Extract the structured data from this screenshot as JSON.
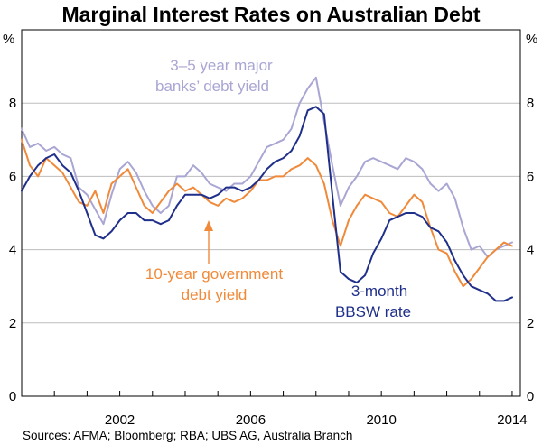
{
  "chart_data": {
    "type": "line",
    "title": "Marginal Interest Rates on Australian Debt",
    "source": "Sources: AFMA; Bloomberg; RBA; UBS AG, Australia Branch",
    "ylabel_left": "%",
    "ylabel_right": "%",
    "xlim": [
      1999.0,
      2014.25
    ],
    "ylim": [
      0,
      10
    ],
    "x_ticks": [
      2002,
      2006,
      2010,
      2014
    ],
    "y_ticks": [
      0,
      2,
      4,
      6,
      8
    ],
    "grid": "horizontal",
    "series": [
      {
        "key": "bank_debt",
        "name_lines": [
          "3–5 year major",
          "banks’ debt yield"
        ],
        "color": "#a9a6d3",
        "points": [
          [
            1999.0,
            7.3
          ],
          [
            1999.25,
            6.8
          ],
          [
            1999.5,
            6.9
          ],
          [
            1999.75,
            6.7
          ],
          [
            2000.0,
            6.8
          ],
          [
            2000.25,
            6.6
          ],
          [
            2000.5,
            6.5
          ],
          [
            2000.75,
            5.7
          ],
          [
            2001.0,
            5.5
          ],
          [
            2001.25,
            5.1
          ],
          [
            2001.5,
            4.7
          ],
          [
            2001.75,
            5.5
          ],
          [
            2002.0,
            6.2
          ],
          [
            2002.25,
            6.4
          ],
          [
            2002.5,
            6.1
          ],
          [
            2002.75,
            5.6
          ],
          [
            2003.0,
            5.2
          ],
          [
            2003.25,
            5.0
          ],
          [
            2003.5,
            5.2
          ],
          [
            2003.75,
            6.0
          ],
          [
            2004.0,
            6.0
          ],
          [
            2004.25,
            6.3
          ],
          [
            2004.5,
            6.1
          ],
          [
            2004.75,
            5.8
          ],
          [
            2005.0,
            5.7
          ],
          [
            2005.25,
            5.6
          ],
          [
            2005.5,
            5.8
          ],
          [
            2005.75,
            5.8
          ],
          [
            2006.0,
            6.0
          ],
          [
            2006.25,
            6.4
          ],
          [
            2006.5,
            6.8
          ],
          [
            2006.75,
            6.9
          ],
          [
            2007.0,
            7.0
          ],
          [
            2007.25,
            7.3
          ],
          [
            2007.5,
            8.0
          ],
          [
            2007.75,
            8.4
          ],
          [
            2008.0,
            8.7
          ],
          [
            2008.25,
            7.5
          ],
          [
            2008.5,
            6.3
          ],
          [
            2008.75,
            5.2
          ],
          [
            2009.0,
            5.7
          ],
          [
            2009.25,
            6.0
          ],
          [
            2009.5,
            6.4
          ],
          [
            2009.75,
            6.5
          ],
          [
            2010.0,
            6.4
          ],
          [
            2010.25,
            6.3
          ],
          [
            2010.5,
            6.2
          ],
          [
            2010.75,
            6.5
          ],
          [
            2011.0,
            6.4
          ],
          [
            2011.25,
            6.2
          ],
          [
            2011.5,
            5.8
          ],
          [
            2011.75,
            5.6
          ],
          [
            2012.0,
            5.8
          ],
          [
            2012.25,
            5.4
          ],
          [
            2012.5,
            4.6
          ],
          [
            2012.75,
            4.0
          ],
          [
            2013.0,
            4.1
          ],
          [
            2013.25,
            3.8
          ],
          [
            2013.5,
            4.0
          ],
          [
            2013.75,
            4.1
          ],
          [
            2014.0,
            4.2
          ]
        ]
      },
      {
        "key": "govt_10y",
        "name_lines": [
          "10-year government",
          "debt yield"
        ],
        "color": "#f08a3a",
        "points": [
          [
            1999.0,
            7.0
          ],
          [
            1999.25,
            6.3
          ],
          [
            1999.5,
            6.0
          ],
          [
            1999.75,
            6.5
          ],
          [
            2000.0,
            6.3
          ],
          [
            2000.25,
            6.1
          ],
          [
            2000.5,
            5.7
          ],
          [
            2000.75,
            5.3
          ],
          [
            2001.0,
            5.2
          ],
          [
            2001.25,
            5.6
          ],
          [
            2001.5,
            5.0
          ],
          [
            2001.75,
            5.8
          ],
          [
            2002.0,
            6.0
          ],
          [
            2002.25,
            6.2
          ],
          [
            2002.5,
            5.7
          ],
          [
            2002.75,
            5.2
          ],
          [
            2003.0,
            5.0
          ],
          [
            2003.25,
            5.3
          ],
          [
            2003.5,
            5.6
          ],
          [
            2003.75,
            5.8
          ],
          [
            2004.0,
            5.6
          ],
          [
            2004.25,
            5.7
          ],
          [
            2004.5,
            5.5
          ],
          [
            2004.75,
            5.3
          ],
          [
            2005.0,
            5.2
          ],
          [
            2005.25,
            5.4
          ],
          [
            2005.5,
            5.3
          ],
          [
            2005.75,
            5.4
          ],
          [
            2006.0,
            5.6
          ],
          [
            2006.25,
            5.9
          ],
          [
            2006.5,
            5.9
          ],
          [
            2006.75,
            6.0
          ],
          [
            2007.0,
            6.0
          ],
          [
            2007.25,
            6.2
          ],
          [
            2007.5,
            6.3
          ],
          [
            2007.75,
            6.5
          ],
          [
            2008.0,
            6.3
          ],
          [
            2008.25,
            5.8
          ],
          [
            2008.5,
            4.8
          ],
          [
            2008.75,
            4.1
          ],
          [
            2009.0,
            4.8
          ],
          [
            2009.25,
            5.2
          ],
          [
            2009.5,
            5.5
          ],
          [
            2009.75,
            5.4
          ],
          [
            2010.0,
            5.3
          ],
          [
            2010.25,
            5.0
          ],
          [
            2010.5,
            4.9
          ],
          [
            2010.75,
            5.2
          ],
          [
            2011.0,
            5.5
          ],
          [
            2011.25,
            5.3
          ],
          [
            2011.5,
            4.6
          ],
          [
            2011.75,
            4.0
          ],
          [
            2012.0,
            3.9
          ],
          [
            2012.25,
            3.4
          ],
          [
            2012.5,
            3.0
          ],
          [
            2012.75,
            3.2
          ],
          [
            2013.0,
            3.5
          ],
          [
            2013.25,
            3.8
          ],
          [
            2013.5,
            4.0
          ],
          [
            2013.75,
            4.2
          ],
          [
            2014.0,
            4.1
          ]
        ]
      },
      {
        "key": "bbsw",
        "name_lines": [
          "3-month",
          "BBSW rate"
        ],
        "color": "#1f2f8a",
        "points": [
          [
            1999.0,
            5.6
          ],
          [
            1999.25,
            6.0
          ],
          [
            1999.5,
            6.3
          ],
          [
            1999.75,
            6.5
          ],
          [
            2000.0,
            6.6
          ],
          [
            2000.25,
            6.3
          ],
          [
            2000.5,
            6.1
          ],
          [
            2000.75,
            5.6
          ],
          [
            2001.0,
            5.0
          ],
          [
            2001.25,
            4.4
          ],
          [
            2001.5,
            4.3
          ],
          [
            2001.75,
            4.5
          ],
          [
            2002.0,
            4.8
          ],
          [
            2002.25,
            5.0
          ],
          [
            2002.5,
            5.0
          ],
          [
            2002.75,
            4.8
          ],
          [
            2003.0,
            4.8
          ],
          [
            2003.25,
            4.7
          ],
          [
            2003.5,
            4.8
          ],
          [
            2003.75,
            5.2
          ],
          [
            2004.0,
            5.5
          ],
          [
            2004.25,
            5.5
          ],
          [
            2004.5,
            5.5
          ],
          [
            2004.75,
            5.4
          ],
          [
            2005.0,
            5.5
          ],
          [
            2005.25,
            5.7
          ],
          [
            2005.5,
            5.7
          ],
          [
            2005.75,
            5.6
          ],
          [
            2006.0,
            5.7
          ],
          [
            2006.25,
            5.9
          ],
          [
            2006.5,
            6.2
          ],
          [
            2006.75,
            6.4
          ],
          [
            2007.0,
            6.5
          ],
          [
            2007.25,
            6.7
          ],
          [
            2007.5,
            7.1
          ],
          [
            2007.75,
            7.8
          ],
          [
            2008.0,
            7.9
          ],
          [
            2008.25,
            7.7
          ],
          [
            2008.5,
            5.5
          ],
          [
            2008.75,
            3.4
          ],
          [
            2009.0,
            3.2
          ],
          [
            2009.25,
            3.1
          ],
          [
            2009.5,
            3.3
          ],
          [
            2009.75,
            3.9
          ],
          [
            2010.0,
            4.3
          ],
          [
            2010.25,
            4.8
          ],
          [
            2010.5,
            4.9
          ],
          [
            2010.75,
            5.0
          ],
          [
            2011.0,
            5.0
          ],
          [
            2011.25,
            4.9
          ],
          [
            2011.5,
            4.6
          ],
          [
            2011.75,
            4.5
          ],
          [
            2012.0,
            4.2
          ],
          [
            2012.25,
            3.7
          ],
          [
            2012.5,
            3.3
          ],
          [
            2012.75,
            3.0
          ],
          [
            2013.0,
            2.9
          ],
          [
            2013.25,
            2.8
          ],
          [
            2013.5,
            2.6
          ],
          [
            2013.75,
            2.6
          ],
          [
            2014.0,
            2.7
          ]
        ]
      }
    ]
  }
}
